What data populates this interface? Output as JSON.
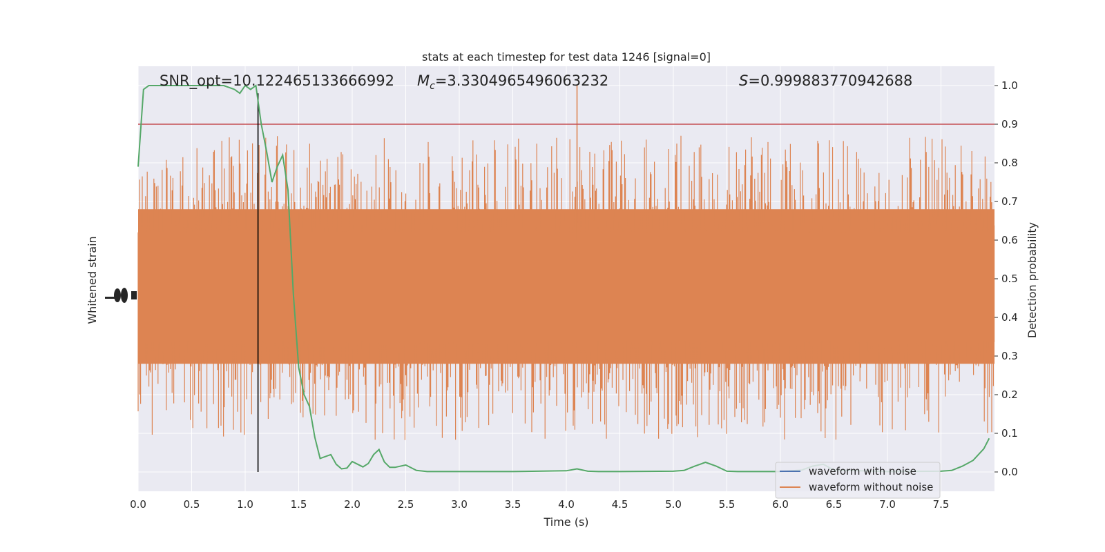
{
  "chart_data": {
    "type": "line",
    "title": "stats at each timestep for test data 1246 [signal=0]",
    "xlabel": "Time (s)",
    "ylabel_left": "Whitened strain",
    "ylabel_right": "Detection probability",
    "xlim": [
      0,
      8
    ],
    "ylim_right": [
      -0.05,
      1.05
    ],
    "x_ticks": [
      0.0,
      0.5,
      1.0,
      1.5,
      2.0,
      2.5,
      3.0,
      3.5,
      4.0,
      4.5,
      5.0,
      5.5,
      6.0,
      6.5,
      7.0,
      7.5
    ],
    "x_tick_labels": [
      "0.0",
      "0.5",
      "1.0",
      "1.5",
      "2.0",
      "2.5",
      "3.0",
      "3.5",
      "4.0",
      "4.5",
      "5.0",
      "5.5",
      "6.0",
      "6.5",
      "7.0",
      "7.5"
    ],
    "y_right_ticks": [
      0.0,
      0.1,
      0.2,
      0.3,
      0.4,
      0.5,
      0.6,
      0.7,
      0.8,
      0.9,
      1.0
    ],
    "y_right_tick_labels": [
      "0.0",
      "0.1",
      "0.2",
      "0.3",
      "0.4",
      "0.5",
      "0.6",
      "0.7",
      "0.8",
      "0.9",
      "1.0"
    ],
    "grid": true,
    "legend_placement": "lower-right",
    "annotations": {
      "snr": "SNR_opt=10.122465133666992",
      "mc_symbol": "M",
      "mc_sub": "c",
      "mc_value": "=3.3304965496063232",
      "s_symbol": "S",
      "s_value": "=0.999883770942688"
    },
    "threshold": {
      "value": 0.9,
      "color": "#c44e52"
    },
    "marker_time": 1.12,
    "series": [
      {
        "name": "waveform with noise",
        "color": "#4c72b0"
      },
      {
        "name": "waveform without noise",
        "color": "#dd8452",
        "amplitude_band_mid": [
          0.28,
          0.68
        ],
        "amplitude_band_spike": [
          0.08,
          0.87
        ],
        "spike_at": {
          "x": 4.1,
          "y": 1.0
        }
      },
      {
        "name": "detection probability",
        "color": "#55a868",
        "x": [
          0.0,
          0.05,
          0.1,
          0.15,
          0.2,
          0.3,
          0.4,
          0.5,
          0.6,
          0.7,
          0.8,
          0.9,
          0.95,
          1.0,
          1.05,
          1.1,
          1.15,
          1.2,
          1.25,
          1.3,
          1.35,
          1.4,
          1.45,
          1.5,
          1.55,
          1.6,
          1.65,
          1.7,
          1.8,
          1.85,
          1.9,
          1.95,
          2.0,
          2.05,
          2.1,
          2.15,
          2.2,
          2.25,
          2.3,
          2.35,
          2.4,
          2.5,
          2.6,
          2.7,
          2.8,
          3.0,
          3.5,
          4.0,
          4.1,
          4.2,
          4.3,
          4.5,
          5.0,
          5.1,
          5.2,
          5.3,
          5.4,
          5.5,
          5.6,
          6.0,
          6.2,
          6.3,
          6.4,
          6.5,
          7.0,
          7.5,
          7.6,
          7.7,
          7.8,
          7.9,
          7.95
        ],
        "values": [
          0.79,
          0.99,
          1.0,
          1.0,
          1.0,
          1.0,
          1.0,
          1.0,
          1.0,
          1.0,
          1.0,
          0.99,
          0.98,
          1.0,
          0.99,
          1.0,
          0.9,
          0.83,
          0.75,
          0.79,
          0.82,
          0.73,
          0.46,
          0.27,
          0.2,
          0.17,
          0.09,
          0.035,
          0.045,
          0.02,
          0.008,
          0.01,
          0.027,
          0.02,
          0.013,
          0.022,
          0.045,
          0.058,
          0.026,
          0.012,
          0.012,
          0.018,
          0.004,
          0.001,
          0.001,
          0.001,
          0.001,
          0.003,
          0.008,
          0.002,
          0.001,
          0.001,
          0.002,
          0.004,
          0.015,
          0.025,
          0.015,
          0.002,
          0.001,
          0.001,
          0.005,
          0.015,
          0.02,
          0.005,
          0.001,
          0.002,
          0.004,
          0.015,
          0.03,
          0.06,
          0.087
        ]
      }
    ]
  }
}
